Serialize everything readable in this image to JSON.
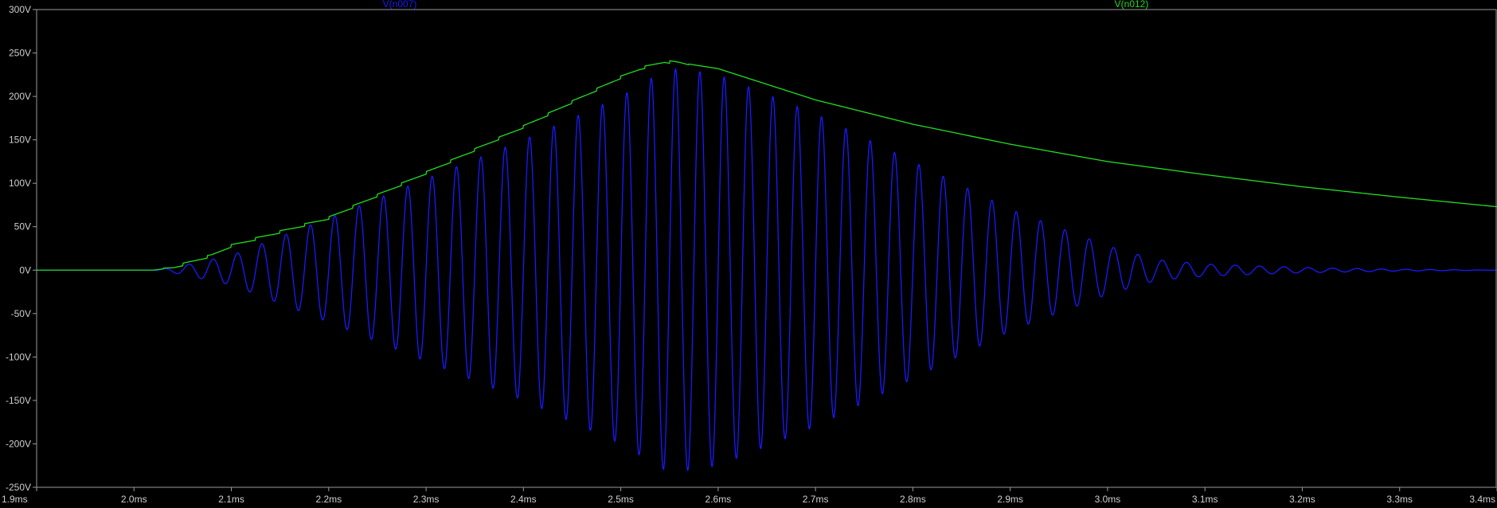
{
  "chart_data": {
    "type": "line",
    "xlabel": "",
    "ylabel": "",
    "xlim": [
      1.9,
      3.4
    ],
    "ylim": [
      -250,
      300
    ],
    "x_unit": "ms",
    "y_unit": "V",
    "grid": false,
    "background": "#000000",
    "x_ticks": [
      "1.9ms",
      "2.0ms",
      "2.1ms",
      "2.2ms",
      "2.3ms",
      "2.4ms",
      "2.5ms",
      "2.6ms",
      "2.7ms",
      "2.8ms",
      "2.9ms",
      "3.0ms",
      "3.1ms",
      "3.2ms",
      "3.3ms",
      "3.4ms"
    ],
    "y_ticks": [
      "300V",
      "250V",
      "200V",
      "150V",
      "100V",
      "50V",
      "0V",
      "-50V",
      "-100V",
      "-150V",
      "-200V",
      "-250V"
    ],
    "x_tick_values": [
      1.9,
      2.0,
      2.1,
      2.2,
      2.3,
      2.4,
      2.5,
      2.6,
      2.7,
      2.8,
      2.9,
      3.0,
      3.1,
      3.2,
      3.3,
      3.4
    ],
    "y_tick_values": [
      300,
      250,
      200,
      150,
      100,
      50,
      0,
      -50,
      -100,
      -150,
      -200,
      -250
    ],
    "series": [
      {
        "name": "V(n007)",
        "color": "#1a1aff",
        "oscillation_period_ms": 0.025,
        "envelope_x": [
          1.9,
          2.0,
          2.02,
          2.04,
          2.1,
          2.2,
          2.3,
          2.4,
          2.5,
          2.545,
          2.56,
          2.6,
          2.7,
          2.8,
          2.9,
          3.0,
          3.05,
          3.1,
          3.2,
          3.3,
          3.4
        ],
        "envelope_y": [
          0,
          0,
          0,
          3,
          17,
          60,
          105,
          150,
          200,
          230,
          232,
          225,
          180,
          125,
          70,
          28,
          12,
          7,
          3,
          1,
          0
        ]
      },
      {
        "name": "V(n012)",
        "color": "#22dd22",
        "x": [
          1.9,
          2.0,
          2.02,
          2.04,
          2.06,
          2.08,
          2.1,
          2.2,
          2.3,
          2.4,
          2.5,
          2.52,
          2.545,
          2.56,
          2.6,
          2.7,
          2.8,
          2.9,
          3.0,
          3.1,
          3.2,
          3.3,
          3.4
        ],
        "y": [
          0,
          0,
          0,
          3,
          10,
          17,
          28,
          60,
          112,
          165,
          222,
          232,
          240,
          239,
          232,
          196,
          168,
          145,
          125,
          110,
          96,
          84,
          73
        ]
      }
    ]
  }
}
